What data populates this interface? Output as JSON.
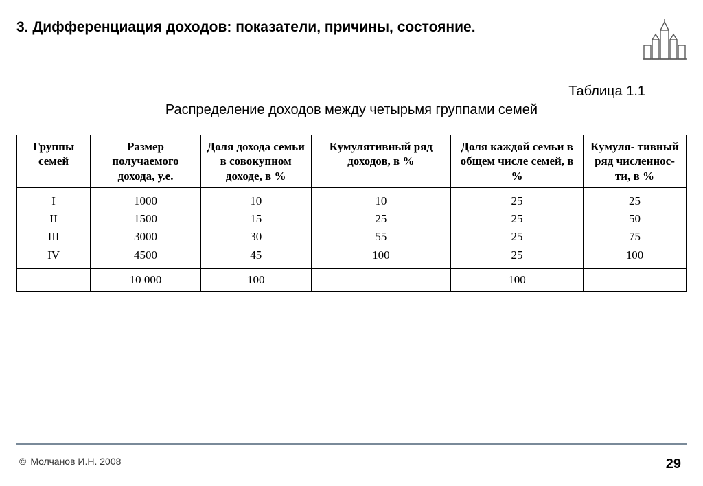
{
  "header": {
    "title": "3. Дифференциация доходов: показатели, причины, состояние."
  },
  "table": {
    "label": "Таблица 1.1",
    "caption": "Распределение доходов между четырьмя группами семей",
    "columns": [
      "Группы семей",
      "Размер получаемого дохода, у.е.",
      "Доля дохода семьи в совокупном доходе, в %",
      "Кумулятивный ряд доходов, в %",
      "Доля каждой семьи в общем числе семей, в %",
      "Кумуля-\nтивный ряд численнос-\nти, в %"
    ],
    "rows": [
      [
        "I",
        "1000",
        "10",
        "10",
        "25",
        "25"
      ],
      [
        "II",
        "1500",
        "15",
        "25",
        "25",
        "50"
      ],
      [
        "III",
        "3000",
        "30",
        "55",
        "25",
        "75"
      ],
      [
        "IV",
        "4500",
        "45",
        "100",
        "25",
        "100"
      ]
    ],
    "totals": [
      "",
      "10 000",
      "100",
      "",
      "100",
      ""
    ],
    "styling": {
      "border_color": "#000000",
      "header_font_weight": "bold",
      "cell_font_family": "Times New Roman",
      "cell_fontsize_pt": 13,
      "text_align": "center",
      "col_widths_pct": [
        10,
        15,
        15,
        19,
        18,
        14
      ]
    }
  },
  "footer": {
    "copyright_symbol": "©",
    "copyright_text": "Молчанов И.Н. 2008",
    "page_number": "29"
  },
  "colors": {
    "background": "#ffffff",
    "text": "#000000",
    "rule": "#7a8a99",
    "icon": "#5a5a5a"
  }
}
